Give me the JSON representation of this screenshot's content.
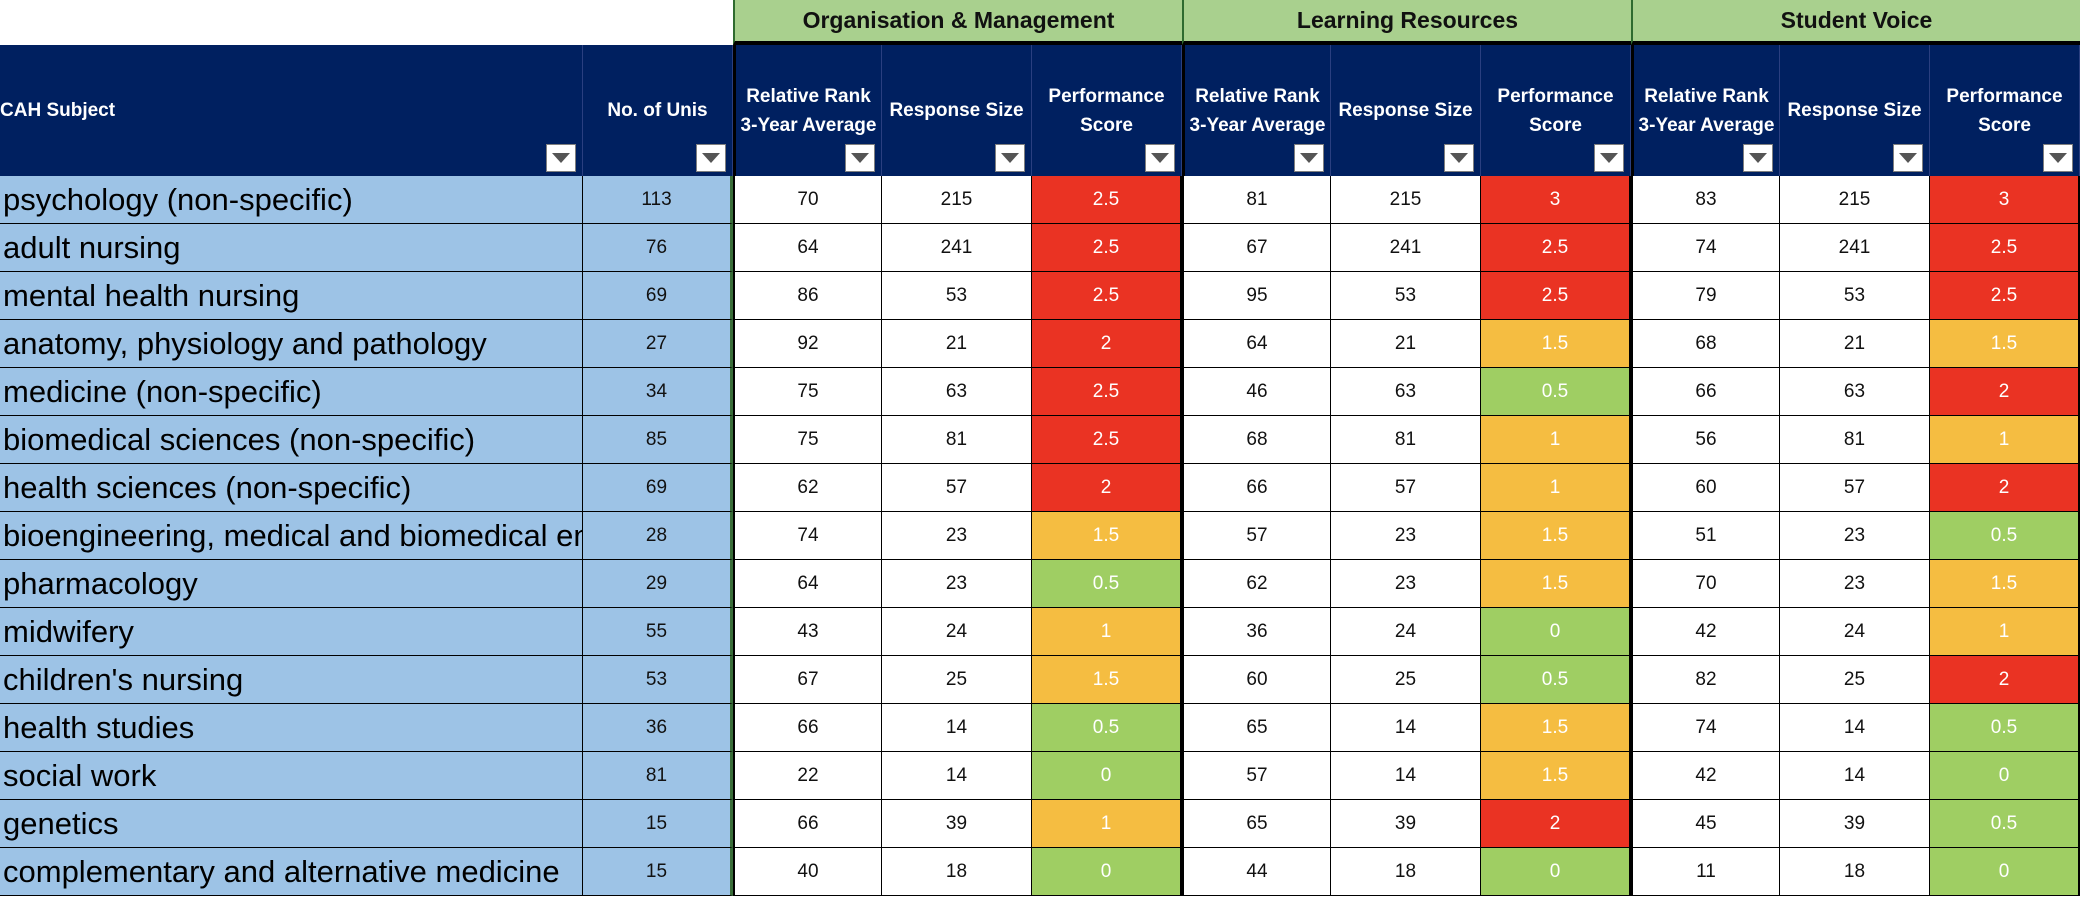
{
  "groups": [
    "Organisation & Management",
    "Learning Resources",
    "Student Voice"
  ],
  "headers": {
    "subject": "CAH Subject",
    "unis": "No. of Unis",
    "rank": "Relative Rank 3-Year Average",
    "response": "Response Size",
    "score": "Performance Score"
  },
  "colors": {
    "red": "#ea3323",
    "amber": "#f5bd41",
    "green": "#9fce63",
    "header": "#002060",
    "group": "#a9d08e",
    "subject": "#9dc3e6"
  },
  "rows": [
    {
      "subject": "psychology (non-specific)",
      "unis": "113",
      "om": [
        "70",
        "215",
        "2.5",
        "red"
      ],
      "lr": [
        "81",
        "215",
        "3",
        "red"
      ],
      "sv": [
        "83",
        "215",
        "3",
        "red"
      ]
    },
    {
      "subject": "adult nursing",
      "unis": "76",
      "om": [
        "64",
        "241",
        "2.5",
        "red"
      ],
      "lr": [
        "67",
        "241",
        "2.5",
        "red"
      ],
      "sv": [
        "74",
        "241",
        "2.5",
        "red"
      ]
    },
    {
      "subject": "mental health nursing",
      "unis": "69",
      "om": [
        "86",
        "53",
        "2.5",
        "red"
      ],
      "lr": [
        "95",
        "53",
        "2.5",
        "red"
      ],
      "sv": [
        "79",
        "53",
        "2.5",
        "red"
      ]
    },
    {
      "subject": "anatomy, physiology and pathology",
      "unis": "27",
      "om": [
        "92",
        "21",
        "2",
        "red"
      ],
      "lr": [
        "64",
        "21",
        "1.5",
        "amber"
      ],
      "sv": [
        "68",
        "21",
        "1.5",
        "amber"
      ]
    },
    {
      "subject": "medicine (non-specific)",
      "unis": "34",
      "om": [
        "75",
        "63",
        "2.5",
        "red"
      ],
      "lr": [
        "46",
        "63",
        "0.5",
        "green"
      ],
      "sv": [
        "66",
        "63",
        "2",
        "red"
      ]
    },
    {
      "subject": "biomedical sciences (non-specific)",
      "unis": "85",
      "om": [
        "75",
        "81",
        "2.5",
        "red"
      ],
      "lr": [
        "68",
        "81",
        "1",
        "amber"
      ],
      "sv": [
        "56",
        "81",
        "1",
        "amber"
      ]
    },
    {
      "subject": "health sciences (non-specific)",
      "unis": "69",
      "om": [
        "62",
        "57",
        "2",
        "red"
      ],
      "lr": [
        "66",
        "57",
        "1",
        "amber"
      ],
      "sv": [
        "60",
        "57",
        "2",
        "red"
      ]
    },
    {
      "subject": "bioengineering, medical and biomedical engineering",
      "unis": "28",
      "om": [
        "74",
        "23",
        "1.5",
        "amber"
      ],
      "lr": [
        "57",
        "23",
        "1.5",
        "amber"
      ],
      "sv": [
        "51",
        "23",
        "0.5",
        "green"
      ]
    },
    {
      "subject": "pharmacology",
      "unis": "29",
      "om": [
        "64",
        "23",
        "0.5",
        "green"
      ],
      "lr": [
        "62",
        "23",
        "1.5",
        "amber"
      ],
      "sv": [
        "70",
        "23",
        "1.5",
        "amber"
      ]
    },
    {
      "subject": "midwifery",
      "unis": "55",
      "om": [
        "43",
        "24",
        "1",
        "amber"
      ],
      "lr": [
        "36",
        "24",
        "0",
        "green"
      ],
      "sv": [
        "42",
        "24",
        "1",
        "amber"
      ]
    },
    {
      "subject": "children's nursing",
      "unis": "53",
      "om": [
        "67",
        "25",
        "1.5",
        "amber"
      ],
      "lr": [
        "60",
        "25",
        "0.5",
        "green"
      ],
      "sv": [
        "82",
        "25",
        "2",
        "red"
      ]
    },
    {
      "subject": "health studies",
      "unis": "36",
      "om": [
        "66",
        "14",
        "0.5",
        "green"
      ],
      "lr": [
        "65",
        "14",
        "1.5",
        "amber"
      ],
      "sv": [
        "74",
        "14",
        "0.5",
        "green"
      ]
    },
    {
      "subject": "social work",
      "unis": "81",
      "om": [
        "22",
        "14",
        "0",
        "green"
      ],
      "lr": [
        "57",
        "14",
        "1.5",
        "amber"
      ],
      "sv": [
        "42",
        "14",
        "0",
        "green"
      ]
    },
    {
      "subject": "genetics",
      "unis": "15",
      "om": [
        "66",
        "39",
        "1",
        "amber"
      ],
      "lr": [
        "65",
        "39",
        "2",
        "red"
      ],
      "sv": [
        "45",
        "39",
        "0.5",
        "green"
      ]
    },
    {
      "subject": "complementary and alternative medicine",
      "unis": "15",
      "om": [
        "40",
        "18",
        "0",
        "green"
      ],
      "lr": [
        "44",
        "18",
        "0",
        "green"
      ],
      "sv": [
        "11",
        "18",
        "0",
        "green"
      ]
    }
  ]
}
